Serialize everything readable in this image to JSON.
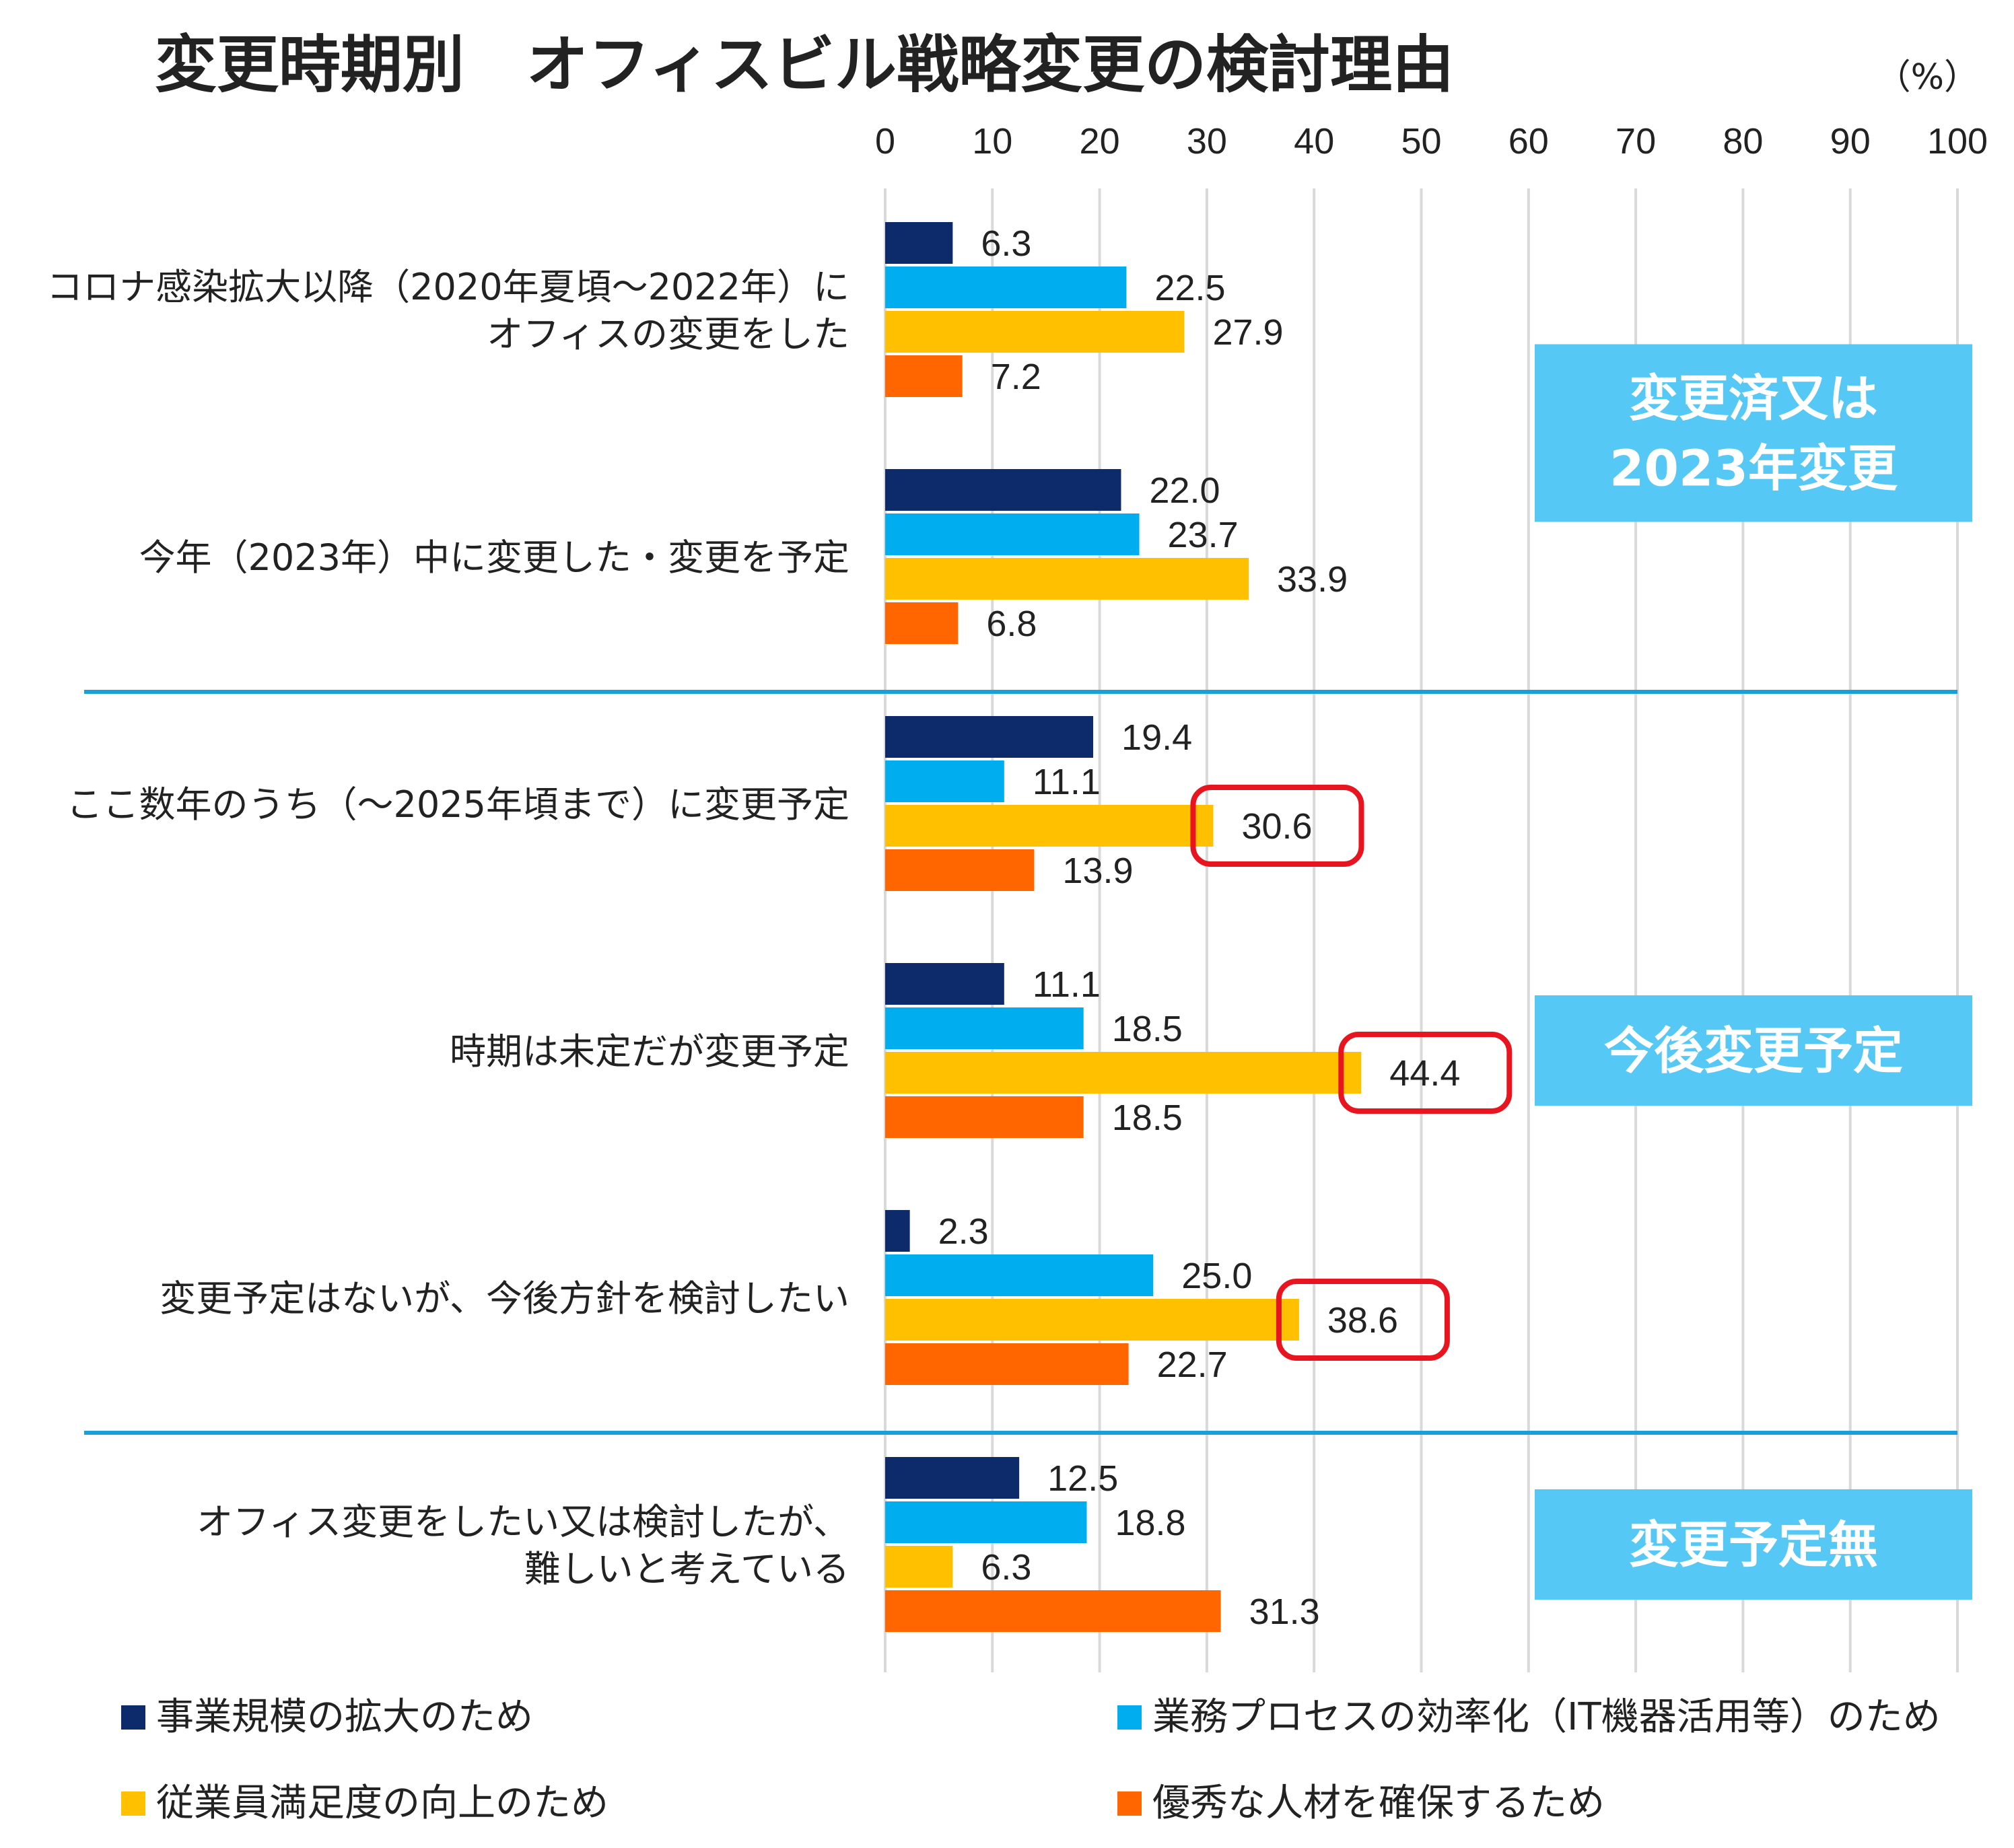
{
  "chart_data": {
    "type": "bar",
    "orientation": "horizontal",
    "title": "変更時期別　オフィスビル戦略変更の検討理由",
    "unit": "（%）",
    "xlim": [
      0,
      100
    ],
    "xticks": [
      "0",
      "10",
      "20",
      "30",
      "40",
      "50",
      "60",
      "70",
      "80",
      "90",
      "100"
    ],
    "grid": true,
    "legend_position": "bottom",
    "categories": [
      [
        "コロナ感染拡大以降（2020年夏頃～2022年）に",
        "オフィスの変更をした"
      ],
      [
        "今年（2023年）中に変更した・変更を予定"
      ],
      [
        "ここ数年のうち（～2025年頃まで）に変更予定"
      ],
      [
        "時期は未定だが変更予定"
      ],
      [
        "変更予定はないが、今後方針を検討したい"
      ],
      [
        "オフィス変更をしたい又は検討したが、",
        "難しいと考えている"
      ]
    ],
    "series": [
      {
        "name": "事業規模の拡大のため",
        "color": "#0d2a6b",
        "values": [
          6.3,
          22.0,
          19.4,
          11.1,
          2.3,
          12.5
        ]
      },
      {
        "name": "業務プロセスの効率化（IT機器活用等）のため",
        "color": "#00aeef",
        "values": [
          22.5,
          23.7,
          11.1,
          18.5,
          25.0,
          18.8
        ]
      },
      {
        "name": "従業員満足度の向上のため",
        "color": "#ffc000",
        "values": [
          27.9,
          33.9,
          30.6,
          44.4,
          38.6,
          6.3
        ]
      },
      {
        "name": "優秀な人材を確保するため",
        "color": "#ff6600",
        "values": [
          7.2,
          6.8,
          13.9,
          18.5,
          22.7,
          31.3
        ]
      }
    ],
    "value_labels": [
      [
        "6.3",
        "22.5",
        "27.9",
        "7.2"
      ],
      [
        "22.0",
        "23.7",
        "33.9",
        "6.8"
      ],
      [
        "19.4",
        "11.1",
        "30.6",
        "13.9"
      ],
      [
        "11.1",
        "18.5",
        "44.4",
        "18.5"
      ],
      [
        "2.3",
        "25.0",
        "38.6",
        "22.7"
      ],
      [
        "12.5",
        "18.8",
        "6.3",
        "31.3"
      ]
    ],
    "highlighted": [
      {
        "category_index": 2,
        "series_index": 2
      },
      {
        "category_index": 3,
        "series_index": 2
      },
      {
        "category_index": 4,
        "series_index": 2
      }
    ],
    "highlight_color": "#e8141f",
    "groups": [
      {
        "lines": [
          "変更済又は",
          "2023年変更"
        ],
        "categories": [
          0,
          1
        ]
      },
      {
        "lines": [
          "今後変更予定"
        ],
        "categories": [
          2,
          3,
          4
        ]
      },
      {
        "lines": [
          "変更予定無"
        ],
        "categories": [
          5
        ]
      }
    ],
    "group_box_color": "#56c8f5",
    "separator_color": "#1a9fd9",
    "gridline_color": "#d9d9d9"
  }
}
